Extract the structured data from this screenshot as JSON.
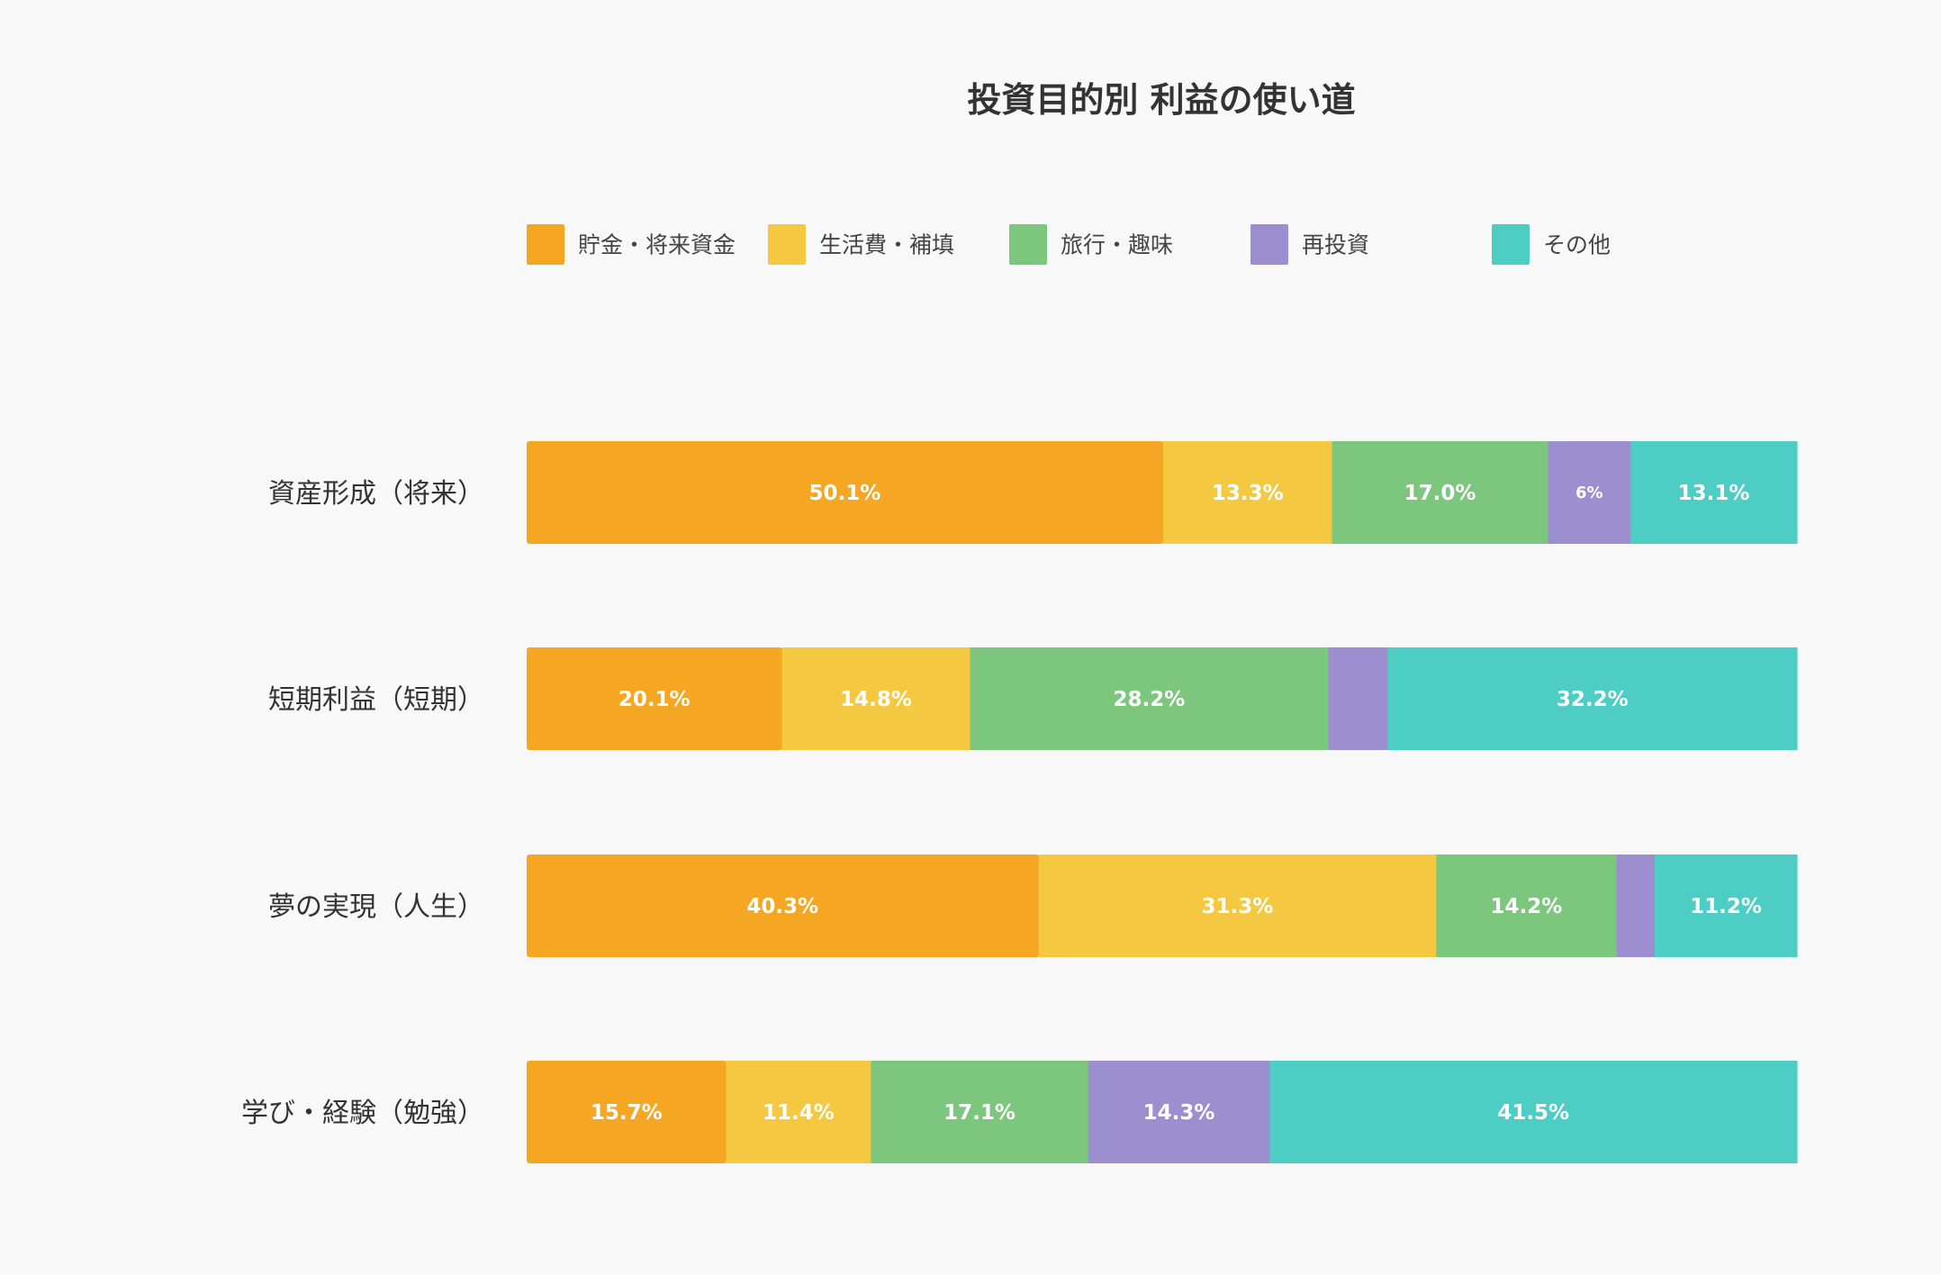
{
  "chart_data": {
    "type": "bar",
    "orientation": "horizontal",
    "stacked": true,
    "normalized_percent": true,
    "title": "投資目的別 利益の使い道",
    "legend_position": "top",
    "grid": false,
    "xlim": [
      0,
      100
    ],
    "categories": [
      "資産形成（将来）",
      "短期利益（短期）",
      "夢の実現（人生）",
      "学び・経験（勉強）"
    ],
    "series": [
      {
        "name": "貯金・将来資金",
        "color": "#F5A623",
        "values": [
          50.1,
          20.1,
          40.3,
          15.7
        ],
        "labels": [
          "50.1%",
          "20.1%",
          "40.3%",
          "15.7%"
        ]
      },
      {
        "name": "生活費・補填",
        "color": "#F5C842",
        "values": [
          13.3,
          14.8,
          31.3,
          11.4
        ],
        "labels": [
          "13.3%",
          "14.8%",
          "31.3%",
          "11.4%"
        ]
      },
      {
        "name": "旅行・趣味",
        "color": "#7DC67E",
        "values": [
          17.0,
          28.2,
          14.2,
          17.1
        ],
        "labels": [
          "17.0%",
          "28.2%",
          "14.2%",
          "17.1%"
        ]
      },
      {
        "name": "再投資",
        "color": "#9B8FD0",
        "values": [
          6.5,
          4.7,
          3.0,
          14.3
        ],
        "labels": [
          "6%",
          "",
          "",
          "14.3%"
        ]
      },
      {
        "name": "その他",
        "color": "#4ECDC4",
        "values": [
          13.1,
          32.2,
          11.2,
          41.5
        ],
        "labels": [
          "13.1%",
          "32.2%",
          "11.2%",
          "41.5%"
        ]
      }
    ]
  }
}
